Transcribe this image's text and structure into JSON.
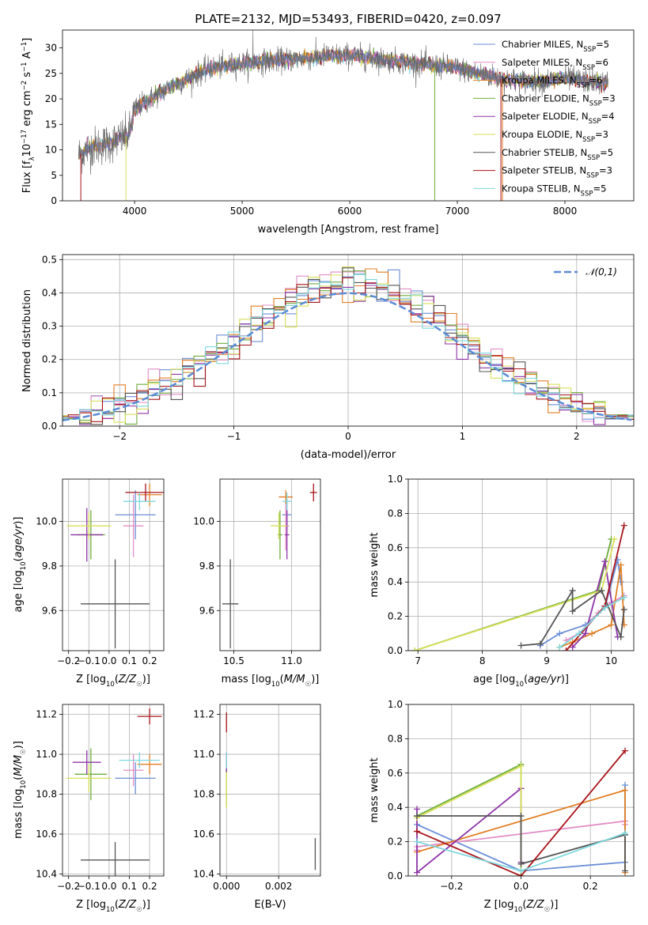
{
  "figure": {
    "title": "PLATE=2132, MJD=53493, FIBERID=0420, z=0.097"
  },
  "models": [
    {
      "name": "Chabrier MILES",
      "nssp": "5",
      "color": "#6b8fd6"
    },
    {
      "name": "Salpeter MILES",
      "nssp": "6",
      "color": "#e28ec6"
    },
    {
      "name": "Kroupa MILES",
      "nssp": "6",
      "color": "#e07f26"
    },
    {
      "name": "Chabrier ELODIE",
      "nssp": "3",
      "color": "#6fae3c"
    },
    {
      "name": "Salpeter ELODIE",
      "nssp": "4",
      "color": "#8e35a8"
    },
    {
      "name": "Kroupa ELODIE",
      "nssp": "3",
      "color": "#d8df5a"
    },
    {
      "name": "Chabrier STELIB",
      "nssp": "5",
      "color": "#555555"
    },
    {
      "name": "Salpeter STELIB",
      "nssp": "3",
      "color": "#a8141a"
    },
    {
      "name": "Kroupa STELIB",
      "nssp": "5",
      "color": "#7fd8de"
    }
  ],
  "chart_data": [
    {
      "id": "spectrum",
      "type": "line",
      "xlabel": "wavelength [Angstrom, rest frame]",
      "ylabel": "Flux [f_λ 10^-17 erg cm^-2 s^-1 A^-1]",
      "xlim": [
        3330,
        8640
      ],
      "ylim": [
        0,
        33.5
      ],
      "xticks": [
        4000,
        5000,
        6000,
        7000,
        8000
      ],
      "yticks": [
        0,
        5,
        10,
        15,
        20,
        25,
        30
      ],
      "continuum": {
        "x": [
          3480,
          3600,
          3800,
          3950,
          4000,
          4150,
          4300,
          4500,
          4700,
          5000,
          5300,
          5600,
          5800,
          6000,
          6200,
          6400,
          6600,
          6800,
          7000,
          7200,
          7400,
          7600,
          7800,
          8000,
          8200,
          8400
        ],
        "y": [
          9,
          10.5,
          11.5,
          13,
          18,
          20,
          22,
          24,
          26,
          27,
          27.5,
          28,
          28.5,
          28.5,
          28,
          27.5,
          27,
          26.5,
          26,
          25,
          24,
          23.5,
          23.5,
          24,
          23.5,
          23
        ]
      },
      "legend": {
        "position": "upper-right"
      }
    },
    {
      "id": "residuals",
      "type": "histogram",
      "xlabel": "(data-model)/error",
      "ylabel": "Normed distribution",
      "xlim": [
        -2.5,
        2.5
      ],
      "ylim": [
        0,
        0.515
      ],
      "xticks": [
        -2,
        -1,
        0,
        1,
        2
      ],
      "yticks": [
        0.0,
        0.1,
        0.2,
        0.3,
        0.4,
        0.5
      ],
      "bin_width": 0.1,
      "reference": {
        "name": "𝒩(0,1)",
        "mean": 0,
        "sigma": 1,
        "color": "#5b8bd6"
      },
      "legend": {
        "position": "upper-right"
      }
    },
    {
      "id": "age-vs-Z",
      "type": "scatter-errorbar",
      "xlabel": "Z [log10(Z/Z☉)]",
      "ylabel": "age [log10(age/yr)]",
      "xlim": [
        -0.23,
        0.27
      ],
      "ylim": [
        9.42,
        10.19
      ],
      "xticks": [
        -0.2,
        -0.1,
        0.0,
        0.1,
        0.2
      ],
      "yticks": [
        9.6,
        9.8,
        10.0
      ],
      "points": [
        {
          "x": 0.13,
          "y": 10.03,
          "xerr": 0.1,
          "yerr": 0.11
        },
        {
          "x": 0.12,
          "y": 9.98,
          "xerr": 0.05,
          "yerr": 0.14
        },
        {
          "x": 0.2,
          "y": 10.12,
          "xerr": 0.06,
          "yerr": 0.05
        },
        {
          "x": -0.09,
          "y": 9.94,
          "xerr": 0.07,
          "yerr": 0.11
        },
        {
          "x": -0.11,
          "y": 9.94,
          "xerr": 0.08,
          "yerr": 0.12
        },
        {
          "x": -0.1,
          "y": 9.98,
          "xerr": 0.11,
          "yerr": 0.06
        },
        {
          "x": 0.03,
          "y": 9.63,
          "xerr": 0.17,
          "yerr": 0.2
        },
        {
          "x": 0.18,
          "y": 10.13,
          "xerr": 0.1,
          "yerr": 0.04
        },
        {
          "x": 0.15,
          "y": 10.09,
          "xerr": 0.08,
          "yerr": 0.04
        }
      ]
    },
    {
      "id": "age-vs-mass",
      "type": "scatter-errorbar",
      "xlabel": "mass [log10(M/M☉)]",
      "ylabel": "",
      "xlim": [
        10.38,
        11.25
      ],
      "ylim": [
        9.42,
        10.19
      ],
      "xticks": [
        10.5,
        11.0
      ],
      "yticks": [
        9.6,
        9.8,
        10.0
      ],
      "points": [
        {
          "x": 10.96,
          "y": 10.03,
          "xerr": 0.04,
          "yerr": 0.07
        },
        {
          "x": 10.95,
          "y": 9.98,
          "xerr": 0.03,
          "yerr": 0.11
        },
        {
          "x": 10.95,
          "y": 10.11,
          "xerr": 0.06,
          "yerr": 0.03
        },
        {
          "x": 10.9,
          "y": 9.94,
          "xerr": 0.02,
          "yerr": 0.11
        },
        {
          "x": 10.96,
          "y": 9.94,
          "xerr": 0.02,
          "yerr": 0.11
        },
        {
          "x": 10.89,
          "y": 9.98,
          "xerr": 0.07,
          "yerr": 0.06
        },
        {
          "x": 10.47,
          "y": 9.63,
          "xerr": 0.07,
          "yerr": 0.2
        },
        {
          "x": 11.19,
          "y": 10.13,
          "xerr": 0.03,
          "yerr": 0.04
        },
        {
          "x": 10.96,
          "y": 10.09,
          "xerr": 0.04,
          "yerr": 0.04
        }
      ]
    },
    {
      "id": "weight-vs-age",
      "type": "line",
      "xlabel": "age [log10(age/yr)]",
      "ylabel": "mass weight",
      "xlim": [
        6.85,
        10.35
      ],
      "ylim": [
        0,
        1.0
      ],
      "xticks": [
        7,
        8,
        9,
        10
      ],
      "yticks": [
        0.0,
        0.2,
        0.4,
        0.6,
        0.8,
        1.0
      ],
      "series": [
        {
          "x": [
            8.9,
            9.2,
            9.6,
            9.9,
            10.1,
            10.15
          ],
          "y": [
            0.03,
            0.1,
            0.15,
            0.25,
            0.53,
            0.4
          ]
        },
        {
          "x": [
            9.3,
            9.5,
            9.8,
            10.0,
            10.2
          ],
          "y": [
            0.06,
            0.1,
            0.22,
            0.28,
            0.32
          ]
        },
        {
          "x": [
            9.2,
            9.4,
            9.7,
            10.0,
            10.15,
            10.2
          ],
          "y": [
            0.02,
            0.05,
            0.1,
            0.15,
            0.5,
            0.15
          ]
        },
        {
          "x": [
            6.95,
            9.8,
            10.0
          ],
          "y": [
            0.0,
            0.35,
            0.65
          ]
        },
        {
          "x": [
            9.4,
            9.6,
            9.9,
            10.1
          ],
          "y": [
            0.02,
            0.1,
            0.52,
            0.08
          ]
        },
        {
          "x": [
            6.95,
            9.85,
            10.05
          ],
          "y": [
            0.0,
            0.35,
            0.65
          ]
        },
        {
          "x": [
            8.6,
            8.9,
            9.4,
            9.4,
            9.85,
            10.15,
            10.2
          ],
          "y": [
            0.03,
            0.04,
            0.35,
            0.23,
            0.35,
            0.08,
            0.24
          ]
        },
        {
          "x": [
            9.3,
            9.9,
            10.2
          ],
          "y": [
            0.0,
            0.26,
            0.73
          ]
        },
        {
          "x": [
            9.2,
            9.5,
            9.9,
            10.2
          ],
          "y": [
            0.02,
            0.1,
            0.25,
            0.31
          ]
        }
      ]
    },
    {
      "id": "mass-vs-Z",
      "type": "scatter-errorbar",
      "xlabel": "Z [log10(Z/Z☉)]",
      "ylabel": "mass [log10(M/M☉)]",
      "xlim": [
        -0.23,
        0.27
      ],
      "ylim": [
        10.39,
        11.25
      ],
      "xticks": [
        -0.2,
        -0.1,
        0.0,
        0.1,
        0.2
      ],
      "yticks": [
        10.4,
        10.6,
        10.8,
        11.0,
        11.2
      ],
      "points": [
        {
          "x": 0.13,
          "y": 10.88,
          "xerr": 0.1,
          "yerr": 0.08
        },
        {
          "x": 0.12,
          "y": 10.92,
          "xerr": 0.05,
          "yerr": 0.08
        },
        {
          "x": 0.2,
          "y": 10.95,
          "xerr": 0.06,
          "yerr": 0.05
        },
        {
          "x": -0.09,
          "y": 10.9,
          "xerr": 0.08,
          "yerr": 0.13
        },
        {
          "x": -0.11,
          "y": 10.96,
          "xerr": 0.07,
          "yerr": 0.06
        },
        {
          "x": -0.1,
          "y": 10.88,
          "xerr": 0.11,
          "yerr": 0.07
        },
        {
          "x": 0.03,
          "y": 10.47,
          "xerr": 0.17,
          "yerr": 0.09
        },
        {
          "x": 0.2,
          "y": 11.19,
          "xerr": 0.06,
          "yerr": 0.04
        },
        {
          "x": 0.15,
          "y": 10.97,
          "xerr": 0.1,
          "yerr": 0.04
        }
      ]
    },
    {
      "id": "mass-vs-ebv",
      "type": "scatter-errorbar",
      "xlabel": "E(B-V)",
      "ylabel": "",
      "xlim": [
        -0.00025,
        0.0036
      ],
      "ylim": [
        10.39,
        11.25
      ],
      "xticks": [
        0.0,
        0.002
      ],
      "yticks": [
        10.4,
        10.6,
        10.8,
        11.0,
        11.2
      ],
      "points": [
        {
          "x": 0.0,
          "y": 10.88,
          "xerr": 0.0,
          "yerr": 0.08
        },
        {
          "x": 0.0,
          "y": 10.92,
          "xerr": 0.0,
          "yerr": 0.08
        },
        {
          "x": 0.0,
          "y": 10.95,
          "xerr": 0.0,
          "yerr": 0.05
        },
        {
          "x": 0.0,
          "y": 10.84,
          "xerr": 0.0,
          "yerr": 0.1
        },
        {
          "x": 0.0,
          "y": 10.96,
          "xerr": 0.0,
          "yerr": 0.05
        },
        {
          "x": 0.0,
          "y": 10.82,
          "xerr": 0.0,
          "yerr": 0.09
        },
        {
          "x": 0.0034,
          "y": 10.5,
          "xerr": 0.0,
          "yerr": 0.08
        },
        {
          "x": 0.0,
          "y": 11.16,
          "xerr": 0.0,
          "yerr": 0.05
        },
        {
          "x": 0.0,
          "y": 10.97,
          "xerr": 0.0,
          "yerr": 0.04
        }
      ]
    },
    {
      "id": "weight-vs-Z",
      "type": "line",
      "xlabel": "Z [log10(Z/Z☉)]",
      "ylabel": "mass weight",
      "xlim": [
        -0.325,
        0.325
      ],
      "ylim": [
        0,
        1.0
      ],
      "xticks": [
        -0.2,
        0.0,
        0.2
      ],
      "yticks": [
        0.0,
        0.2,
        0.4,
        0.6,
        0.8,
        1.0
      ],
      "series": [
        {
          "x": [
            -0.3,
            0.0,
            0.3,
            0.3
          ],
          "y": [
            0.3,
            0.03,
            0.08,
            0.53
          ]
        },
        {
          "x": [
            -0.3,
            -0.3,
            0.3,
            0.3
          ],
          "y": [
            0.15,
            0.17,
            0.32,
            0.3
          ]
        },
        {
          "x": [
            -0.3,
            0.3,
            0.3
          ],
          "y": [
            0.14,
            0.5,
            0.02
          ]
        },
        {
          "x": [
            -0.3,
            0.0,
            0.0
          ],
          "y": [
            0.35,
            0.65,
            0.0
          ]
        },
        {
          "x": [
            -0.3,
            -0.3,
            0.0,
            0.0
          ],
          "y": [
            0.39,
            0.02,
            0.51,
            0.08
          ]
        },
        {
          "x": [
            -0.3,
            0.0,
            0.0
          ],
          "y": [
            0.34,
            0.64,
            0.0
          ]
        },
        {
          "x": [
            -0.3,
            0.0,
            0.0,
            0.3,
            0.3
          ],
          "y": [
            0.35,
            0.35,
            0.07,
            0.24,
            0.03
          ]
        },
        {
          "x": [
            -0.3,
            0.0,
            0.3
          ],
          "y": [
            0.26,
            0.0,
            0.73
          ]
        },
        {
          "x": [
            -0.3,
            0.0,
            0.3
          ],
          "y": [
            0.2,
            0.03,
            0.25
          ]
        }
      ]
    }
  ]
}
